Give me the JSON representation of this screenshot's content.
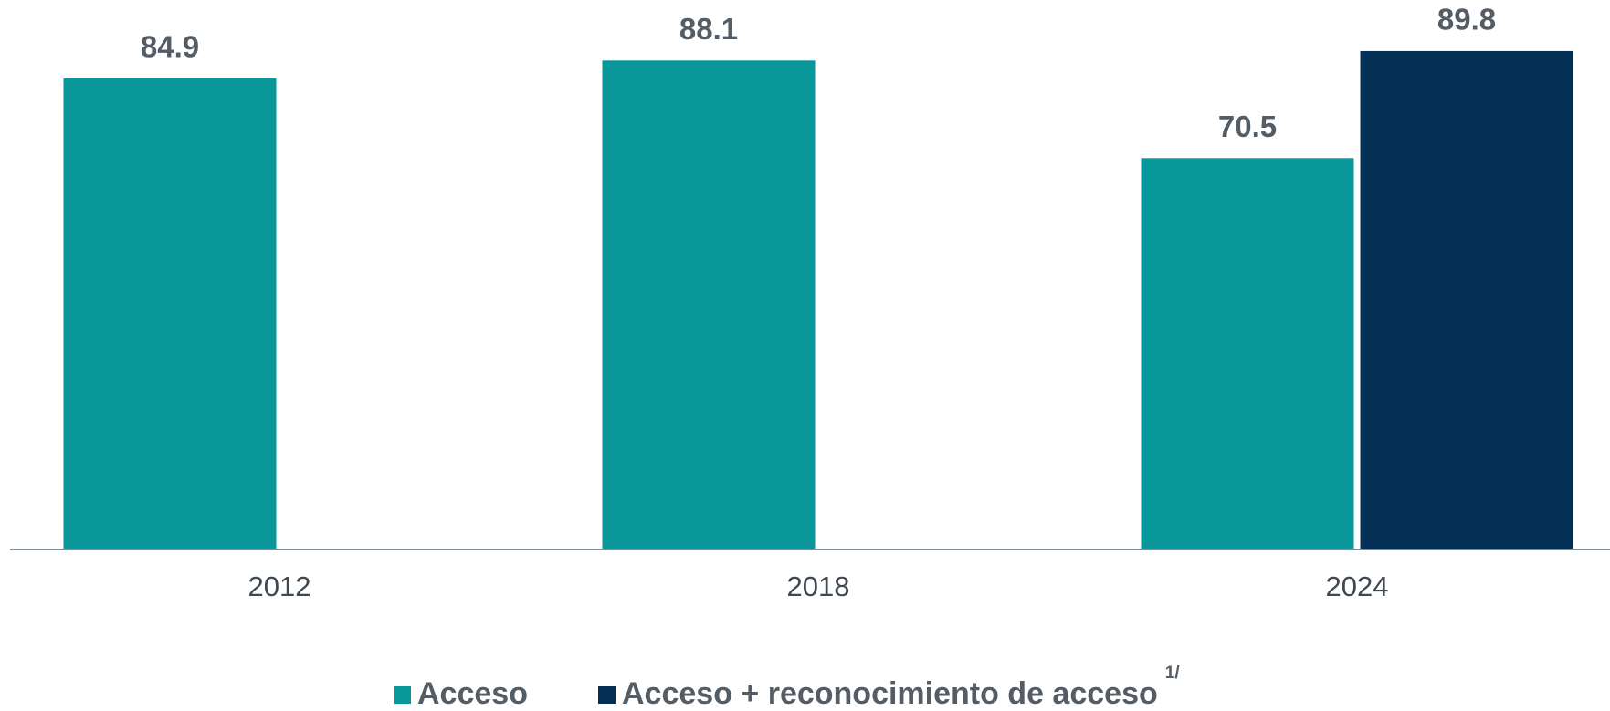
{
  "chart_data": {
    "type": "bar",
    "categories": [
      "2012",
      "2018",
      "2024"
    ],
    "series": [
      {
        "name": "Acceso",
        "color": "#0a9799",
        "values": [
          84.9,
          88.1,
          70.5
        ]
      },
      {
        "name": "Acceso + reconocimiento de acceso",
        "color": "#032f55",
        "values": [
          null,
          null,
          89.8
        ]
      }
    ],
    "annotations": [
      "1/"
    ],
    "ylim": [
      0,
      99
    ],
    "legend": "bottom"
  }
}
